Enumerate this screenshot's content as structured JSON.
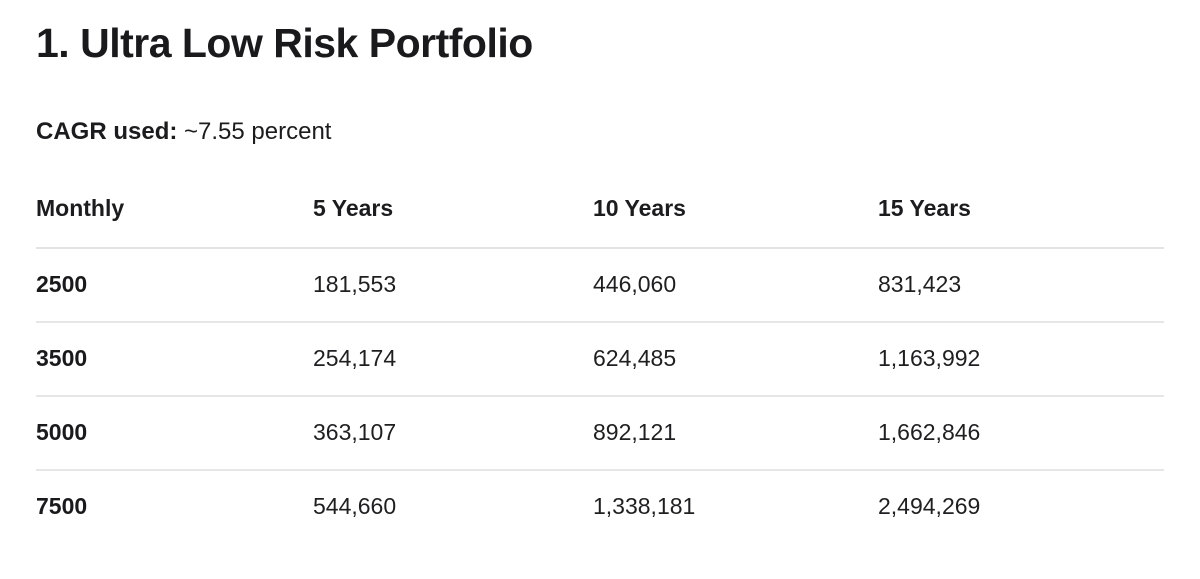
{
  "page": {
    "title": "1. Ultra Low Risk Portfolio",
    "cagr": {
      "label": "CAGR used:",
      "value": "~7.55 percent"
    }
  },
  "table": {
    "columns": [
      "Monthly",
      "5 Years",
      "10 Years",
      "15 Years"
    ],
    "rows": [
      [
        "2500",
        "181,553",
        "446,060",
        "831,423"
      ],
      [
        "3500",
        "254,174",
        "624,485",
        "1,163,992"
      ],
      [
        "5000",
        "363,107",
        "892,121",
        "1,662,846"
      ],
      [
        "7500",
        "544,660",
        "1,338,181",
        "2,494,269"
      ]
    ]
  },
  "colors": {
    "background": "#ffffff",
    "text": "#1c1c1e",
    "divider": "#e3e3e4"
  }
}
